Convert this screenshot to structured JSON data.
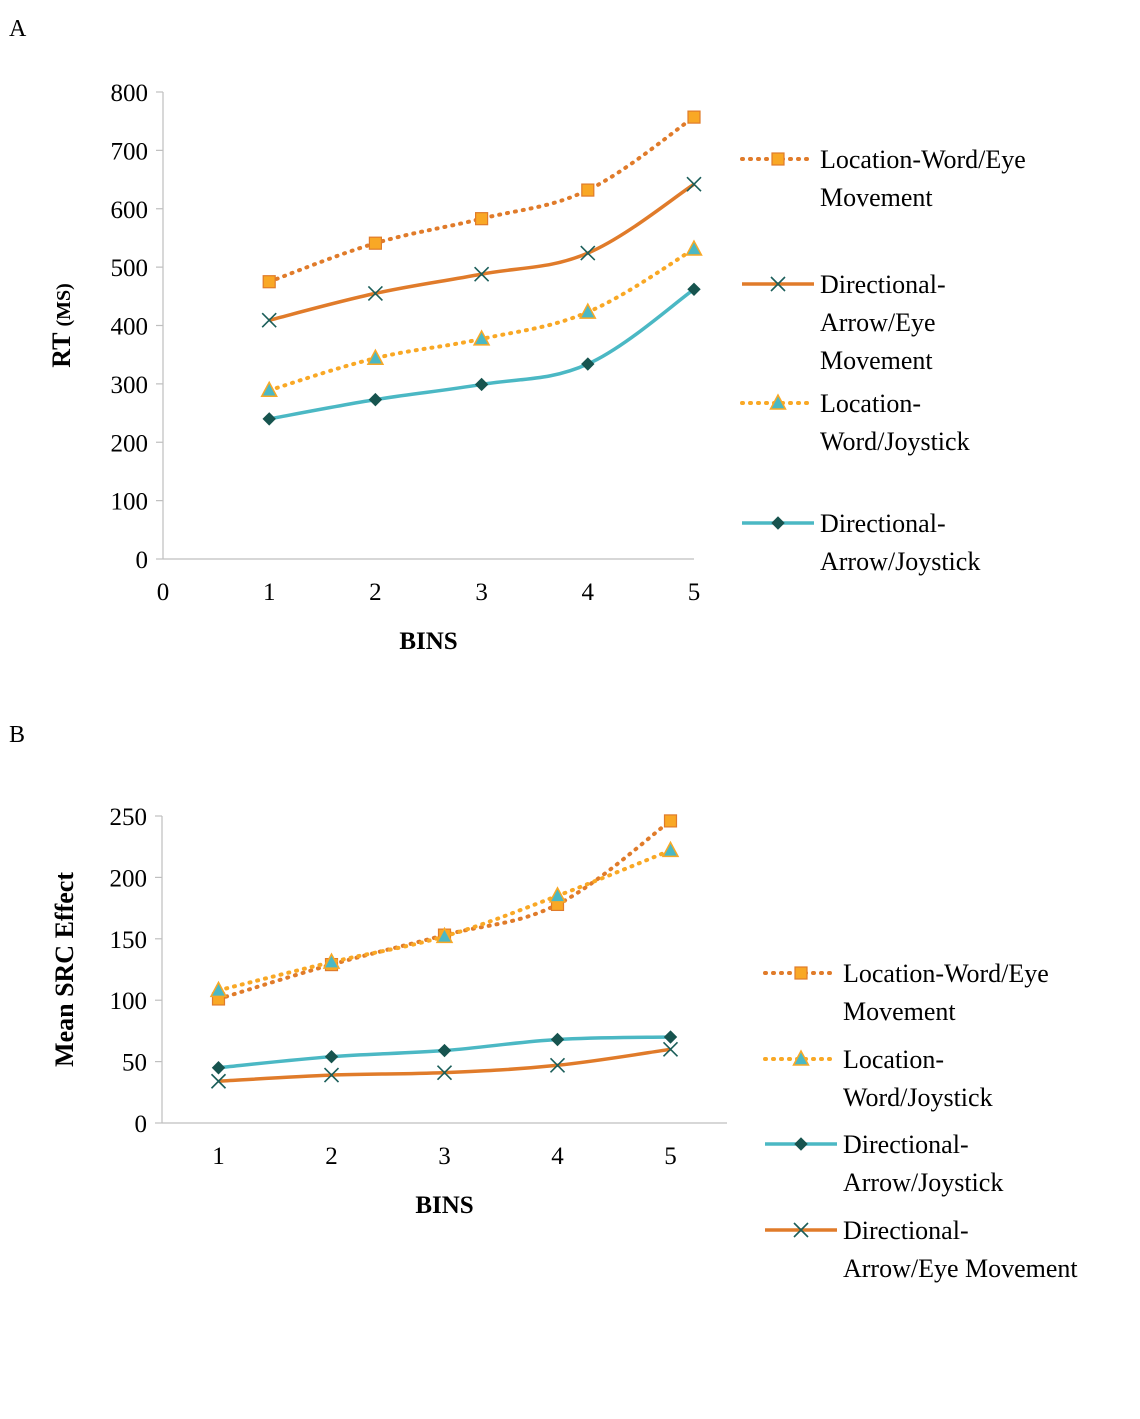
{
  "chart_data": [
    {
      "panel_label": "A",
      "type": "line",
      "xlabel": "BINS",
      "ylabel": "RT",
      "ylabel_unit": "(MS)",
      "xlim": [
        0,
        5
      ],
      "ylim": [
        0,
        800
      ],
      "x_ticks": [
        0,
        1,
        2,
        3,
        4,
        5
      ],
      "y_ticks": [
        0,
        100,
        200,
        300,
        400,
        500,
        600,
        700,
        800
      ],
      "grid": false,
      "legend_position": "right",
      "series": [
        {
          "name_lines": [
            "Location-Word/Eye",
            "Movement"
          ],
          "color": "#E07B2A",
          "marker": "square",
          "marker_fill": "#F9A825",
          "line": "dotted",
          "x": [
            1,
            2,
            3,
            4,
            5
          ],
          "y": [
            475,
            541,
            583,
            632,
            757
          ]
        },
        {
          "name_lines": [
            "Directional-",
            "Arrow/Eye",
            "Movement"
          ],
          "color": "#E07B2A",
          "marker": "x",
          "marker_fill": "#1B5E5A",
          "line": "solid",
          "x": [
            1,
            2,
            3,
            4,
            5
          ],
          "y": [
            409,
            455,
            488,
            524,
            642
          ]
        },
        {
          "name_lines": [
            "Location-",
            "Word/Joystick"
          ],
          "color": "#F9A825",
          "marker": "triangle",
          "marker_fill": "#4BB8C4",
          "line": "dotted",
          "x": [
            1,
            2,
            3,
            4,
            5
          ],
          "y": [
            289,
            344,
            377,
            423,
            531
          ]
        },
        {
          "name_lines": [
            "Directional-",
            "Arrow/Joystick"
          ],
          "color": "#4BB8C4",
          "marker": "diamond",
          "marker_fill": "#17544F",
          "line": "solid",
          "x": [
            1,
            2,
            3,
            4,
            5
          ],
          "y": [
            240,
            273,
            299,
            334,
            462
          ]
        }
      ]
    },
    {
      "panel_label": "B",
      "type": "line",
      "xlabel": "BINS",
      "ylabel": "Mean SRC Effect",
      "ylim": [
        0,
        250
      ],
      "x_ticks": [
        1,
        2,
        3,
        4,
        5
      ],
      "y_ticks": [
        0,
        50,
        100,
        150,
        200,
        250
      ],
      "grid": false,
      "legend_position": "right",
      "series": [
        {
          "name_lines": [
            "Location-Word/Eye",
            "Movement"
          ],
          "color": "#E07B2A",
          "marker": "square",
          "marker_fill": "#F9A825",
          "line": "dotted",
          "x": [
            1,
            2,
            3,
            4,
            5
          ],
          "y": [
            101,
            129,
            153,
            178,
            246
          ]
        },
        {
          "name_lines": [
            "Location-",
            "Word/Joystick"
          ],
          "color": "#F9A825",
          "marker": "triangle",
          "marker_fill": "#4BB8C4",
          "line": "dotted",
          "x": [
            1,
            2,
            3,
            4,
            5
          ],
          "y": [
            108,
            131,
            152,
            185,
            222
          ]
        },
        {
          "name_lines": [
            "Directional-",
            "Arrow/Joystick"
          ],
          "color": "#4BB8C4",
          "marker": "diamond",
          "marker_fill": "#17544F",
          "line": "solid",
          "x": [
            1,
            2,
            3,
            4,
            5
          ],
          "y": [
            45,
            54,
            59,
            68,
            70
          ]
        },
        {
          "name_lines": [
            "Directional-",
            "Arrow/Eye Movement"
          ],
          "color": "#E07B2A",
          "marker": "x",
          "marker_fill": "#1B5E5A",
          "line": "solid",
          "x": [
            1,
            2,
            3,
            4,
            5
          ],
          "y": [
            34,
            39,
            41,
            47,
            60
          ]
        }
      ]
    }
  ]
}
